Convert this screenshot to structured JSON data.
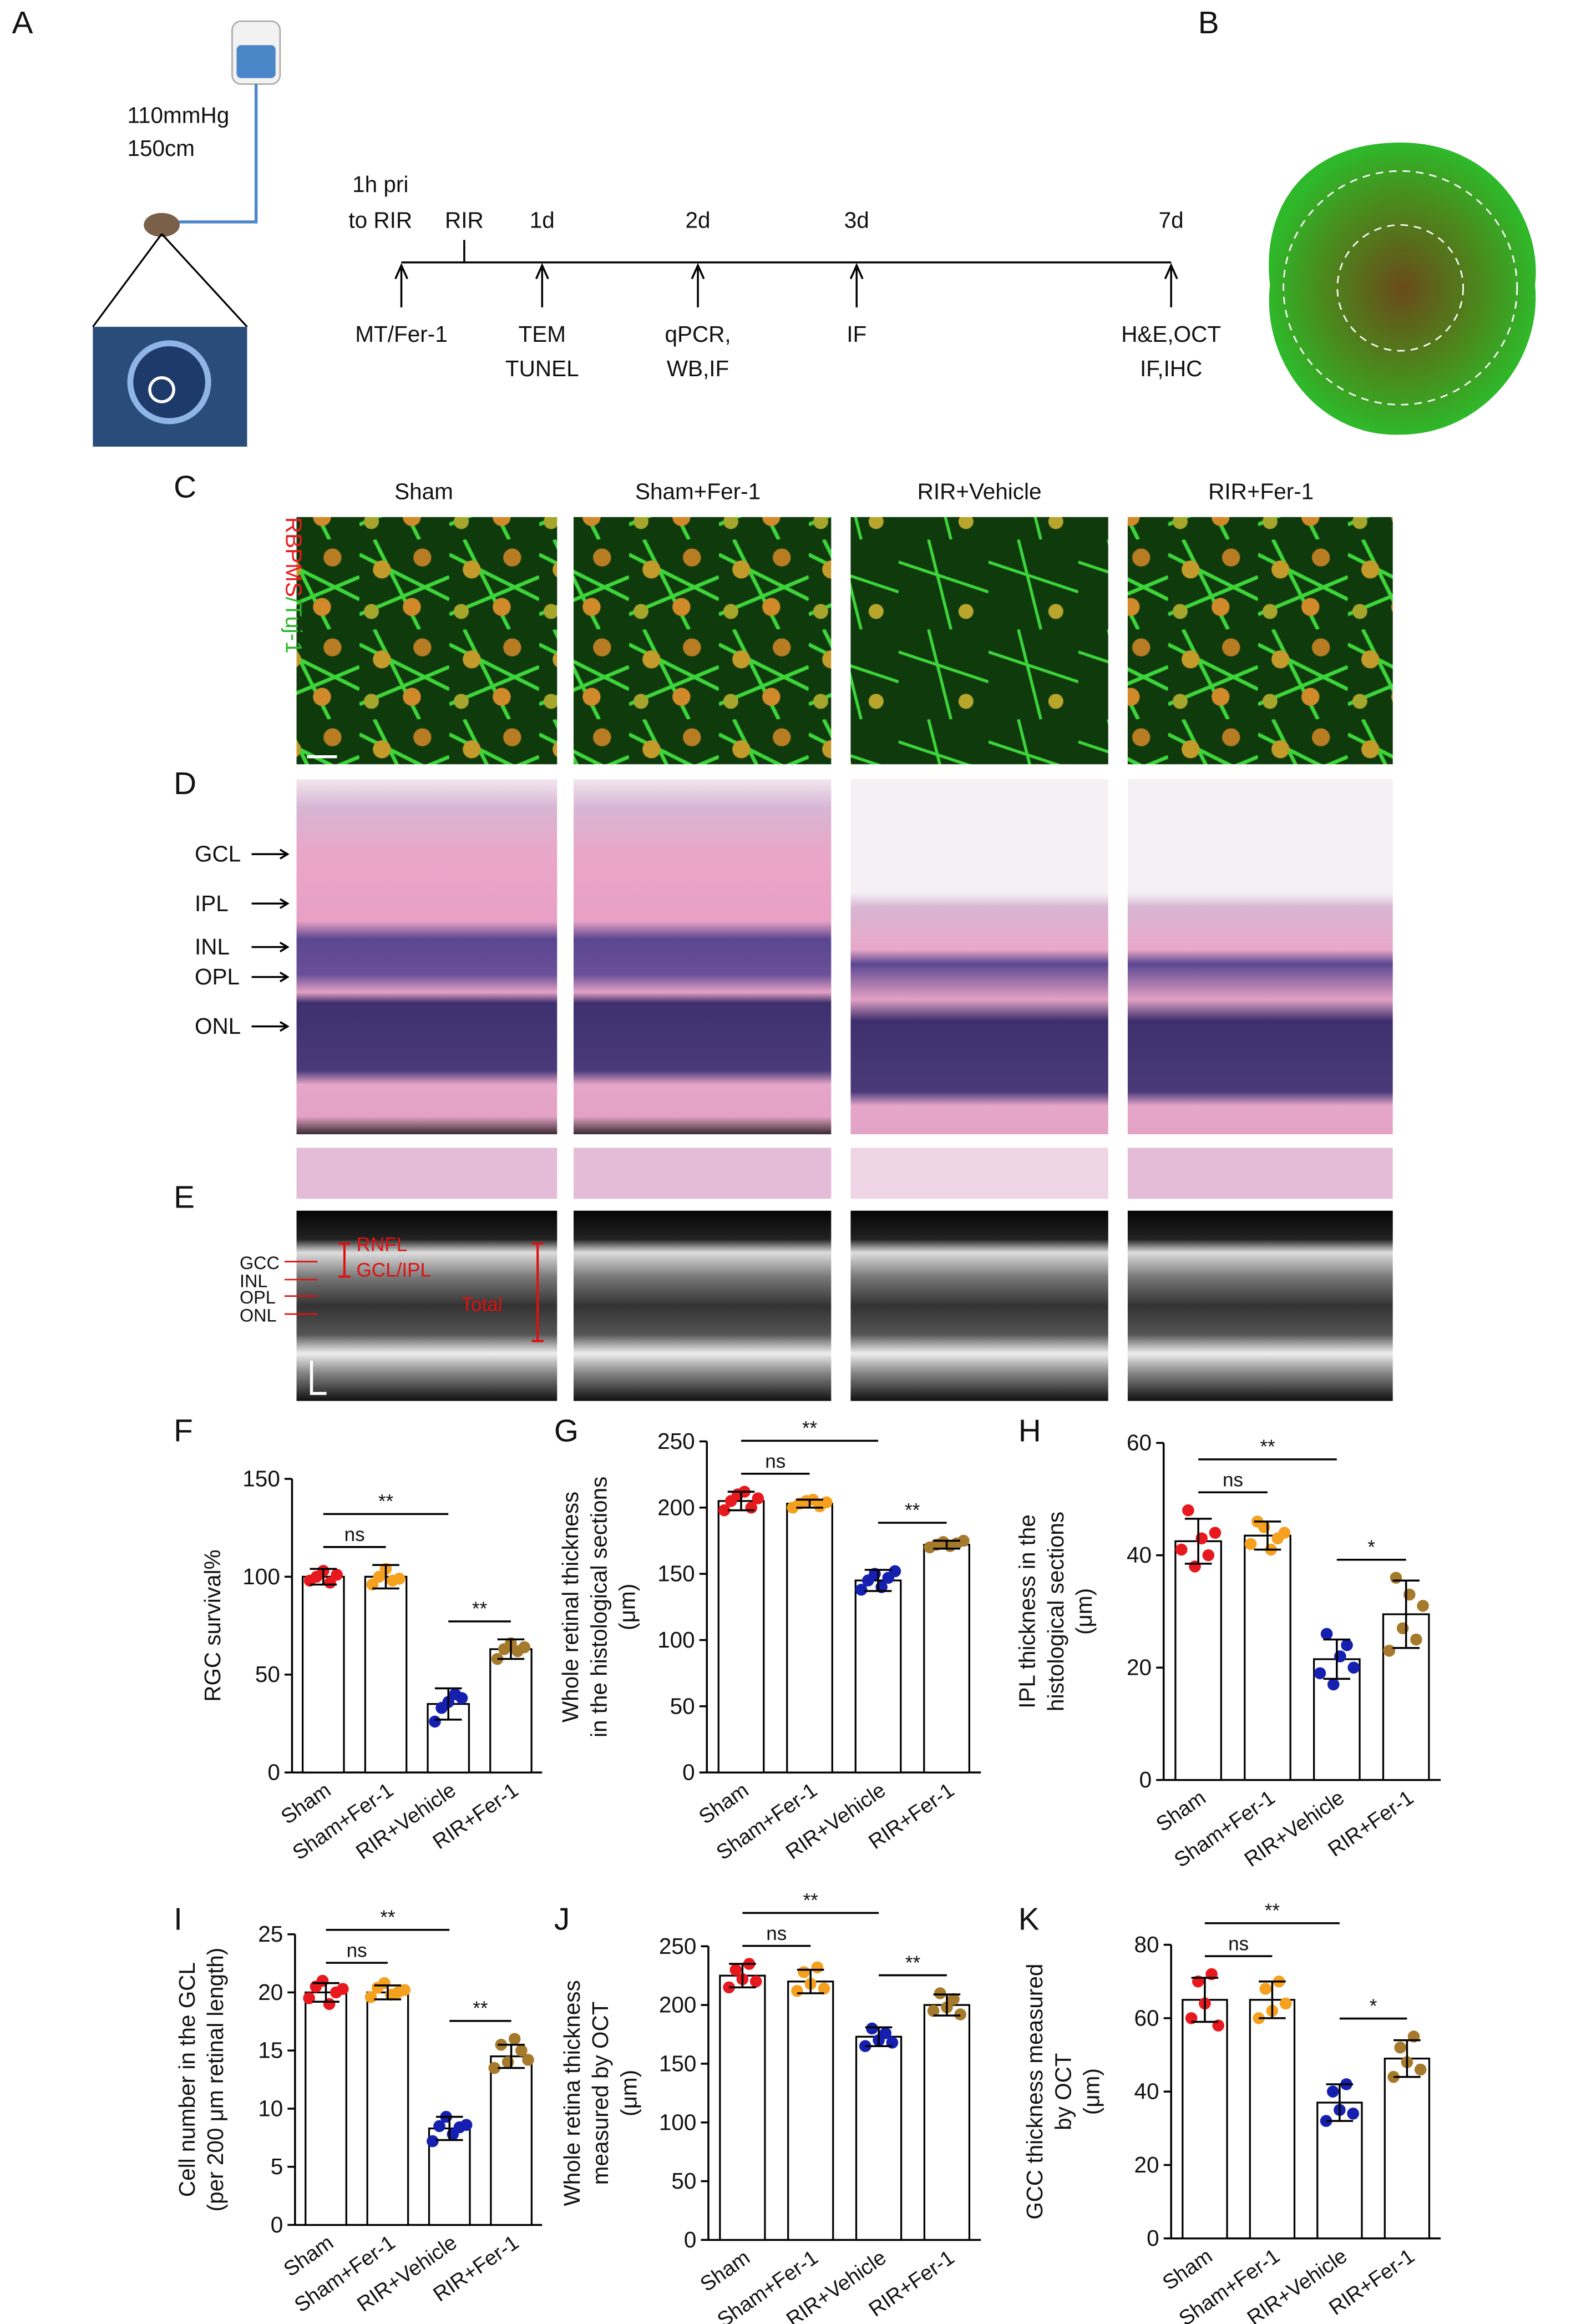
{
  "panel_labels": [
    "A",
    "B",
    "C",
    "D",
    "E",
    "F",
    "G",
    "H",
    "I",
    "J",
    "K"
  ],
  "panel_a": {
    "pressure": "110mmHg",
    "height": "150cm",
    "timeline": [
      {
        "top": [
          "1h pri",
          "to RIR"
        ],
        "bottom": [
          "MT/Fer-1"
        ]
      },
      {
        "top": [
          "RIR"
        ]
      },
      {
        "top": [
          "1d"
        ],
        "bottom": [
          "TEM",
          "TUNEL"
        ]
      },
      {
        "top": [
          "2d"
        ],
        "bottom": [
          "qPCR,",
          "WB,IF"
        ]
      },
      {
        "top": [
          "3d"
        ],
        "bottom": [
          "IF"
        ]
      },
      {
        "top": [
          "7d"
        ],
        "bottom": [
          "H&E,OCT",
          "IF,IHC"
        ]
      }
    ]
  },
  "panel_c": {
    "groups": [
      "Sham",
      "Sham+Fer-1",
      "RIR+Vehicle",
      "RIR+Fer-1"
    ],
    "stain": [
      "RBPMS",
      "/Tuj-1"
    ]
  },
  "panel_d": {
    "layers": [
      "GCL",
      "IPL",
      "INL",
      "OPL",
      "ONL"
    ]
  },
  "panel_e": {
    "layers": [
      "GCC",
      "INL",
      "OPL",
      "ONL"
    ],
    "annotations": [
      "RNFL",
      "GCL/IPL",
      "Total"
    ]
  },
  "chart_data": [
    {
      "type": "bar",
      "ylabel": [
        "RGC  survival%"
      ],
      "categories": [
        "Sham",
        "Sham+Fer-1",
        "RIR+Vehicle",
        "RIR+Fer-1"
      ],
      "values": [
        100,
        100,
        35,
        63
      ],
      "errors": [
        4,
        6,
        8,
        5
      ],
      "points": [
        [
          98,
          100,
          103,
          97,
          101
        ],
        [
          96,
          100,
          104,
          98,
          99
        ],
        [
          26,
          33,
          36,
          40,
          38
        ],
        [
          58,
          63,
          66,
          62,
          64
        ]
      ],
      "colors": [
        "#e8191e",
        "#f5a11f",
        "#1520b0",
        "#a67a2c"
      ],
      "bar_color": "#ffffff",
      "ylim": [
        0,
        150
      ],
      "yticks": [
        0,
        50,
        100,
        150
      ],
      "comparisons": [
        {
          "groups": [
            0,
            2
          ],
          "label": "**"
        },
        {
          "groups": [
            0,
            1
          ],
          "label": "ns"
        },
        {
          "groups": [
            2,
            3
          ],
          "label": "**"
        }
      ]
    },
    {
      "type": "bar",
      "ylabel": [
        "Whole retinal thickness",
        "in the histological sections",
        "(μm)"
      ],
      "categories": [
        "Sham",
        "Sham+Fer-1",
        "RIR+Vehicle",
        "RIR+Fer-1"
      ],
      "values": [
        205,
        203,
        145,
        172
      ],
      "errors": [
        7,
        3,
        8,
        3
      ],
      "points": [
        [
          198,
          205,
          210,
          212,
          200,
          207
        ],
        [
          200,
          203,
          205,
          206,
          201,
          204
        ],
        [
          138,
          145,
          150,
          140,
          147,
          152
        ],
        [
          170,
          172,
          174,
          171,
          173,
          175
        ]
      ],
      "colors": [
        "#e8191e",
        "#f5a11f",
        "#1520b0",
        "#a67a2c"
      ],
      "bar_color": "#ffffff",
      "ylim": [
        0,
        250
      ],
      "yticks": [
        0,
        50,
        100,
        150,
        200,
        250
      ],
      "comparisons": [
        {
          "groups": [
            0,
            2
          ],
          "label": "**"
        },
        {
          "groups": [
            0,
            1
          ],
          "label": "ns"
        },
        {
          "groups": [
            2,
            3
          ],
          "label": "**"
        }
      ]
    },
    {
      "type": "bar",
      "ylabel": [
        "IPL thickness in the",
        "histological sections",
        "(μm)"
      ],
      "categories": [
        "Sham",
        "Sham+Fer-1",
        "RIR+Vehicle",
        "RIR+Fer-1"
      ],
      "values": [
        42.5,
        43.5,
        21.5,
        29.5
      ],
      "errors": [
        4,
        2.5,
        3.5,
        6
      ],
      "points": [
        [
          41,
          48,
          38,
          43,
          40,
          44
        ],
        [
          42,
          46,
          45,
          41,
          43,
          44
        ],
        [
          19,
          26,
          17,
          22,
          24,
          20
        ],
        [
          23,
          36,
          27,
          33,
          25,
          31
        ]
      ],
      "colors": [
        "#e8191e",
        "#f5a11f",
        "#1520b0",
        "#a67a2c"
      ],
      "bar_color": "#ffffff",
      "ylim": [
        0,
        60
      ],
      "yticks": [
        0,
        20,
        40,
        60
      ],
      "comparisons": [
        {
          "groups": [
            0,
            2
          ],
          "label": "**"
        },
        {
          "groups": [
            0,
            1
          ],
          "label": "ns"
        },
        {
          "groups": [
            2,
            3
          ],
          "label": "*"
        }
      ]
    },
    {
      "type": "bar",
      "ylabel": [
        "Cell number in the GCL",
        "(per 200 μm retinal length)"
      ],
      "categories": [
        "Sham",
        "Sham+Fer-1",
        "RIR+Vehicle",
        "RIR+Fer-1"
      ],
      "values": [
        20,
        20,
        8.3,
        14.5
      ],
      "errors": [
        0.8,
        0.6,
        1,
        1
      ],
      "points": [
        [
          19.5,
          20.5,
          21,
          19,
          20,
          20.3
        ],
        [
          19.6,
          20.4,
          20.8,
          19.8,
          20,
          20.2
        ],
        [
          7.2,
          8.5,
          9.3,
          7.8,
          8.4,
          8.6
        ],
        [
          13.5,
          15.5,
          14,
          16,
          15,
          14.2
        ]
      ],
      "colors": [
        "#e8191e",
        "#f5a11f",
        "#1520b0",
        "#a67a2c"
      ],
      "bar_color": "#ffffff",
      "ylim": [
        0,
        25
      ],
      "yticks": [
        0,
        5,
        10,
        15,
        20,
        25
      ],
      "comparisons": [
        {
          "groups": [
            0,
            2
          ],
          "label": "**"
        },
        {
          "groups": [
            0,
            1
          ],
          "label": "ns"
        },
        {
          "groups": [
            2,
            3
          ],
          "label": "**"
        }
      ]
    },
    {
      "type": "bar",
      "ylabel": [
        "Whole retina thickness",
        "measured by OCT",
        "(μm)"
      ],
      "categories": [
        "Sham",
        "Sham+Fer-1",
        "RIR+Vehicle",
        "RIR+Fer-1"
      ],
      "values": [
        225,
        220,
        173,
        200
      ],
      "errors": [
        10,
        10,
        8,
        9
      ],
      "points": [
        [
          215,
          230,
          222,
          235,
          220
        ],
        [
          212,
          228,
          218,
          232,
          214
        ],
        [
          165,
          180,
          170,
          176,
          168
        ],
        [
          195,
          210,
          198,
          205,
          192
        ]
      ],
      "colors": [
        "#e8191e",
        "#f5a11f",
        "#1520b0",
        "#a67a2c"
      ],
      "bar_color": "#ffffff",
      "ylim": [
        0,
        250
      ],
      "yticks": [
        0,
        50,
        100,
        150,
        200,
        250
      ],
      "comparisons": [
        {
          "groups": [
            0,
            2
          ],
          "label": "**"
        },
        {
          "groups": [
            0,
            1
          ],
          "label": "ns"
        },
        {
          "groups": [
            2,
            3
          ],
          "label": "**"
        }
      ]
    },
    {
      "type": "bar",
      "ylabel": [
        "GCC thickness measured",
        "by OCT",
        "(μm)"
      ],
      "categories": [
        "Sham",
        "Sham+Fer-1",
        "RIR+Vehicle",
        "RIR+Fer-1"
      ],
      "values": [
        65,
        65,
        37,
        49
      ],
      "errors": [
        6,
        5,
        5,
        5
      ],
      "points": [
        [
          60,
          70,
          64,
          72,
          58
        ],
        [
          60,
          68,
          62,
          70,
          64
        ],
        [
          32,
          40,
          35,
          42,
          34
        ],
        [
          44,
          52,
          48,
          55,
          46
        ]
      ],
      "colors": [
        "#e8191e",
        "#f5a11f",
        "#1520b0",
        "#a67a2c"
      ],
      "bar_color": "#ffffff",
      "ylim": [
        0,
        80
      ],
      "yticks": [
        0,
        20,
        40,
        60,
        80
      ],
      "comparisons": [
        {
          "groups": [
            0,
            2
          ],
          "label": "**"
        },
        {
          "groups": [
            0,
            1
          ],
          "label": "ns"
        },
        {
          "groups": [
            2,
            3
          ],
          "label": "*"
        }
      ]
    }
  ]
}
